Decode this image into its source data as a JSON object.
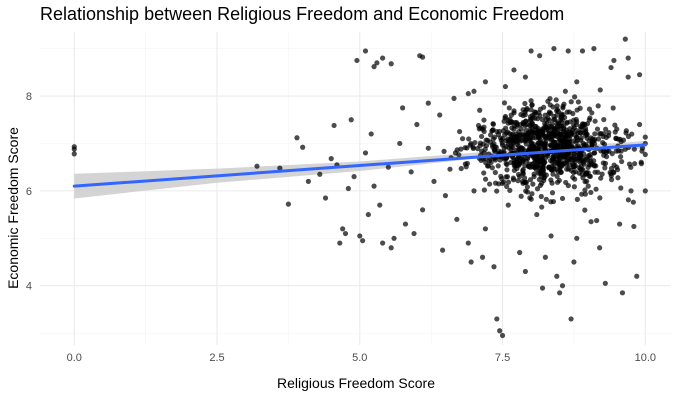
{
  "chart_data": {
    "type": "scatter",
    "title": "Relationship between Religious Freedom and Economic Freedom",
    "xlabel": "Religious Freedom Score",
    "ylabel": "Economic Freedom Score",
    "xlim": [
      -0.6,
      10.45
    ],
    "ylim": [
      2.75,
      9.35
    ],
    "x_ticks": [
      0.0,
      2.5,
      5.0,
      7.5,
      10.0
    ],
    "x_tick_labels": [
      "0.0",
      "2.5",
      "5.0",
      "7.5",
      "10.0"
    ],
    "y_ticks": [
      4,
      6,
      8
    ],
    "y_tick_labels": [
      "4",
      "6",
      "8"
    ],
    "grid": true,
    "point_color": "#000000",
    "point_opacity": 0.7,
    "fit": {
      "method": "linear",
      "x_start": 0.0,
      "x_end": 10.0,
      "y_start": 6.1,
      "y_end": 6.97,
      "color": "#3366ff",
      "band_color": "#cccccc",
      "band": [
        {
          "x": 0.0,
          "lo": 5.84,
          "hi": 6.36
        },
        {
          "x": 2.5,
          "lo": 6.17,
          "hi": 6.47
        },
        {
          "x": 5.0,
          "lo": 6.42,
          "hi": 6.62
        },
        {
          "x": 7.5,
          "lo": 6.74,
          "hi": 6.85
        },
        {
          "x": 10.0,
          "lo": 6.89,
          "hi": 7.05
        }
      ]
    },
    "series": [
      {
        "points": [
          [
            0.0,
            6.93
          ],
          [
            0.0,
            6.88
          ],
          [
            0.0,
            6.78
          ],
          [
            3.2,
            6.52
          ],
          [
            3.6,
            6.48
          ],
          [
            3.75,
            5.72
          ],
          [
            3.9,
            7.12
          ],
          [
            4.0,
            6.92
          ],
          [
            4.1,
            6.2
          ],
          [
            4.3,
            6.35
          ],
          [
            4.4,
            5.85
          ],
          [
            4.5,
            6.68
          ],
          [
            4.55,
            7.38
          ],
          [
            4.6,
            6.55
          ],
          [
            4.65,
            4.9
          ],
          [
            4.7,
            5.2
          ],
          [
            4.75,
            5.1
          ],
          [
            4.8,
            6.05
          ],
          [
            4.85,
            7.5
          ],
          [
            4.9,
            6.3
          ],
          [
            5.0,
            5.05
          ],
          [
            5.05,
            4.95
          ],
          [
            5.1,
            6.8
          ],
          [
            5.15,
            5.5
          ],
          [
            5.2,
            7.2
          ],
          [
            5.25,
            6.1
          ],
          [
            5.3,
            8.7
          ],
          [
            5.35,
            5.7
          ],
          [
            4.95,
            8.75
          ],
          [
            5.1,
            8.95
          ],
          [
            5.25,
            8.62
          ],
          [
            5.4,
            8.8
          ],
          [
            5.55,
            8.68
          ],
          [
            6.05,
            8.85
          ],
          [
            6.1,
            8.82
          ],
          [
            5.4,
            4.9
          ],
          [
            5.5,
            6.5
          ],
          [
            5.6,
            5.0
          ],
          [
            5.7,
            7.0
          ],
          [
            5.8,
            5.3
          ],
          [
            5.9,
            6.4
          ],
          [
            6.0,
            7.4
          ],
          [
            6.1,
            5.6
          ],
          [
            6.2,
            6.9
          ],
          [
            6.3,
            6.2
          ],
          [
            6.4,
            7.6
          ],
          [
            6.5,
            5.9
          ],
          [
            6.6,
            6.7
          ],
          [
            6.7,
            5.4
          ],
          [
            6.8,
            7.1
          ],
          [
            6.9,
            4.9
          ],
          [
            7.0,
            6.0
          ],
          [
            7.1,
            7.7
          ],
          [
            7.2,
            5.2
          ],
          [
            7.3,
            6.6
          ],
          [
            7.4,
            3.3
          ],
          [
            7.45,
            3.05
          ],
          [
            7.5,
            2.95
          ],
          [
            7.35,
            4.4
          ],
          [
            7.6,
            5.7
          ],
          [
            7.7,
            7.3
          ],
          [
            7.8,
            6.3
          ],
          [
            7.9,
            4.3
          ],
          [
            8.0,
            7.9
          ],
          [
            8.1,
            5.5
          ],
          [
            8.2,
            3.95
          ],
          [
            8.3,
            6.8
          ],
          [
            8.4,
            7.5
          ],
          [
            8.5,
            3.85
          ],
          [
            8.55,
            4.0
          ],
          [
            8.6,
            8.1
          ],
          [
            8.7,
            3.3
          ],
          [
            8.8,
            5.0
          ],
          [
            8.9,
            8.95
          ],
          [
            9.0,
            6.1
          ],
          [
            9.1,
            9.0
          ],
          [
            9.2,
            7.2
          ],
          [
            9.3,
            4.05
          ],
          [
            9.4,
            8.6
          ],
          [
            9.5,
            6.5
          ],
          [
            9.6,
            3.85
          ],
          [
            9.65,
            9.2
          ],
          [
            9.7,
            8.4
          ],
          [
            9.75,
            6.0
          ],
          [
            9.8,
            5.25
          ],
          [
            9.85,
            4.2
          ],
          [
            9.9,
            7.4
          ],
          [
            9.95,
            6.9
          ],
          [
            10.0,
            6.0
          ],
          [
            10.0,
            7.0
          ],
          [
            7.55,
            8.2
          ],
          [
            7.7,
            8.55
          ],
          [
            8.0,
            8.95
          ],
          [
            8.15,
            8.85
          ],
          [
            8.4,
            9.0
          ],
          [
            8.65,
            8.95
          ],
          [
            8.25,
            4.6
          ],
          [
            8.45,
            4.2
          ],
          [
            8.75,
            4.5
          ],
          [
            9.2,
            4.8
          ],
          [
            6.9,
            8.05
          ],
          [
            7.0,
            8.1
          ],
          [
            7.2,
            8.3
          ],
          [
            7.9,
            8.4
          ],
          [
            8.8,
            8.3
          ],
          [
            9.45,
            8.75
          ],
          [
            9.7,
            8.8
          ],
          [
            9.9,
            8.45
          ],
          [
            5.75,
            7.75
          ],
          [
            6.2,
            7.85
          ],
          [
            6.65,
            7.95
          ],
          [
            5.55,
            4.8
          ],
          [
            5.95,
            5.1
          ],
          [
            6.45,
            4.75
          ],
          [
            6.95,
            4.5
          ],
          [
            7.15,
            4.6
          ],
          [
            7.8,
            4.7
          ],
          [
            8.35,
            5.05
          ],
          [
            9.05,
            5.35
          ],
          [
            9.55,
            5.3
          ]
        ]
      }
    ]
  }
}
